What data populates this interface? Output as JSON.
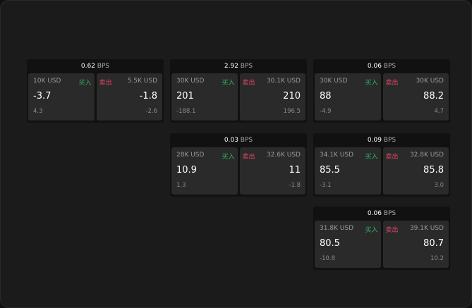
{
  "colors": {
    "buy": "#2fb36a",
    "sell": "#e0466a"
  },
  "cards": [
    {
      "bps": "0.62",
      "unit": "BPS",
      "buy": {
        "size": "10K USD",
        "label": "买入",
        "price": "-3.7",
        "change": "4.3"
      },
      "sell": {
        "size": "5.5K USD",
        "label": "卖出",
        "price": "-1.8",
        "change": "-2.6"
      }
    },
    {
      "bps": "2.92",
      "unit": "BPS",
      "buy": {
        "size": "30K USD",
        "label": "买入",
        "price": "201",
        "change": "-188.1"
      },
      "sell": {
        "size": "30.1K USD",
        "label": "卖出",
        "price": "210",
        "change": "196.5"
      }
    },
    {
      "bps": "0.06",
      "unit": "BPS",
      "buy": {
        "size": "30K USD",
        "label": "买入",
        "price": "88",
        "change": "-4.9"
      },
      "sell": {
        "size": "30K USD",
        "label": "卖出",
        "price": "88.2",
        "change": "4.7"
      }
    },
    {
      "bps": "0.03",
      "unit": "BPS",
      "buy": {
        "size": "28K USD",
        "label": "买入",
        "price": "10.9",
        "change": "1.3"
      },
      "sell": {
        "size": "32.6K USD",
        "label": "卖出",
        "price": "11",
        "change": "-1.8"
      }
    },
    {
      "bps": "0.09",
      "unit": "BPS",
      "buy": {
        "size": "34.1K USD",
        "label": "买入",
        "price": "85.5",
        "change": "-3.1"
      },
      "sell": {
        "size": "32.8K USD",
        "label": "卖出",
        "price": "85.8",
        "change": "3.0"
      }
    },
    {
      "bps": "0.06",
      "unit": "BPS",
      "buy": {
        "size": "31.8K USD",
        "label": "买入",
        "price": "80.5",
        "change": "-10.8"
      },
      "sell": {
        "size": "39.1K USD",
        "label": "卖出",
        "price": "80.7",
        "change": "10.2"
      }
    }
  ]
}
